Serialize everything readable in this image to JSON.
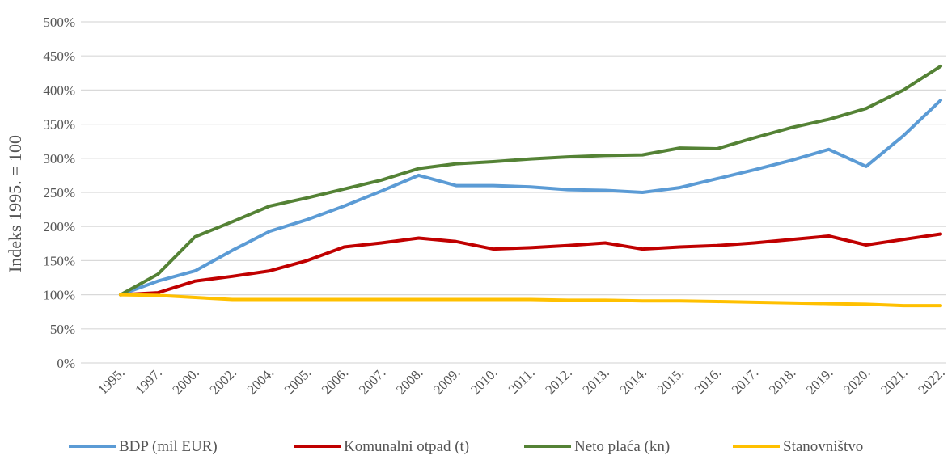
{
  "chart_data": {
    "type": "line",
    "title": "",
    "xlabel": "",
    "ylabel": "Indeks 1995. = 100",
    "ylim": [
      0,
      500
    ],
    "yticks": [
      "0%",
      "50%",
      "100%",
      "150%",
      "200%",
      "250%",
      "300%",
      "350%",
      "400%",
      "450%",
      "500%"
    ],
    "grid": true,
    "legend_position": "bottom",
    "categories": [
      "1995.",
      "1997.",
      "2000.",
      "2002.",
      "2004.",
      "2005.",
      "2006.",
      "2007.",
      "2008.",
      "2009.",
      "2010.",
      "2011.",
      "2012.",
      "2013.",
      "2014.",
      "2015.",
      "2016.",
      "2017.",
      "2018.",
      "2019.",
      "2020.",
      "2021.",
      "2022."
    ],
    "series": [
      {
        "name": "BDP (mil EUR)",
        "color": "#5b9bd5",
        "values": [
          100,
          120,
          135,
          165,
          193,
          210,
          230,
          252,
          275,
          260,
          260,
          258,
          254,
          253,
          250,
          257,
          270,
          283,
          297,
          313,
          288,
          333,
          385
        ]
      },
      {
        "name": "Komunalni otpad (t)",
        "color": "#c00000",
        "values": [
          100,
          103,
          120,
          127,
          135,
          150,
          170,
          176,
          183,
          178,
          167,
          169,
          172,
          176,
          167,
          170,
          172,
          176,
          181,
          186,
          173,
          181,
          189
        ]
      },
      {
        "name": "Neto plaća (kn)",
        "color": "#548235",
        "values": [
          100,
          130,
          185,
          207,
          230,
          242,
          255,
          268,
          285,
          292,
          295,
          299,
          302,
          304,
          305,
          315,
          314,
          330,
          345,
          357,
          373,
          400,
          435
        ]
      },
      {
        "name": "Stanovništvo",
        "color": "#ffc000",
        "values": [
          100,
          99,
          96,
          93,
          93,
          93,
          93,
          93,
          93,
          93,
          93,
          93,
          92,
          92,
          91,
          91,
          90,
          89,
          88,
          87,
          86,
          84,
          84
        ]
      }
    ]
  }
}
